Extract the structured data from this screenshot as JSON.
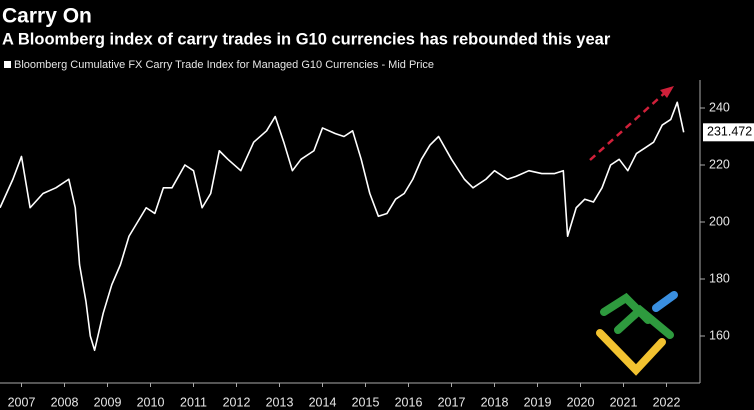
{
  "chart_data": {
    "type": "line",
    "title": "Carry On",
    "subtitle": "A Bloomberg index of carry trades in G10 currencies has rebounded this year",
    "x": [
      2007.0,
      2007.3,
      2007.5,
      2007.7,
      2008.0,
      2008.3,
      2008.6,
      2008.75,
      2008.85,
      2009.0,
      2009.1,
      2009.2,
      2009.4,
      2009.6,
      2009.8,
      2010.0,
      2010.2,
      2010.4,
      2010.6,
      2010.8,
      2011.0,
      2011.3,
      2011.5,
      2011.7,
      2011.9,
      2012.1,
      2012.3,
      2012.6,
      2012.9,
      2013.2,
      2013.4,
      2013.6,
      2013.8,
      2014.0,
      2014.3,
      2014.5,
      2014.8,
      2015.0,
      2015.2,
      2015.4,
      2015.6,
      2015.8,
      2016.0,
      2016.2,
      2016.4,
      2016.6,
      2016.8,
      2017.0,
      2017.2,
      2017.5,
      2017.8,
      2018.0,
      2018.3,
      2018.5,
      2018.8,
      2019.0,
      2019.3,
      2019.6,
      2019.9,
      2020.1,
      2020.2,
      2020.4,
      2020.6,
      2020.8,
      2021.0,
      2021.2,
      2021.4,
      2021.6,
      2021.8,
      2022.0,
      2022.2,
      2022.4,
      2022.6,
      2022.75,
      2022.9
    ],
    "series": [
      {
        "name": "Bloomberg Cumulative FX Carry Trade Index for Managed G10 Currencies - Mid Price",
        "color": "#ffffff",
        "values": [
          205,
          215,
          223,
          205,
          210,
          212,
          215,
          205,
          185,
          172,
          160,
          155,
          168,
          178,
          185,
          195,
          200,
          205,
          203,
          212,
          212,
          220,
          218,
          205,
          210,
          225,
          222,
          218,
          228,
          232,
          237,
          228,
          218,
          222,
          225,
          233,
          231,
          230,
          232,
          222,
          210,
          202,
          203,
          208,
          210,
          215,
          222,
          227,
          230,
          222,
          215,
          212,
          215,
          218,
          215,
          216,
          218,
          217,
          217,
          218,
          195,
          205,
          208,
          207,
          212,
          220,
          222,
          218,
          224,
          226,
          228,
          234,
          236,
          242,
          231.472
        ]
      }
    ],
    "xlim": [
      2007,
      2023
    ],
    "xticks": [
      {
        "value": 2007.5,
        "label": "2007"
      },
      {
        "value": 2008.5,
        "label": "2008"
      },
      {
        "value": 2009.5,
        "label": "2009"
      },
      {
        "value": 2010.5,
        "label": "2010"
      },
      {
        "value": 2011.5,
        "label": "2011"
      },
      {
        "value": 2012.5,
        "label": "2012"
      },
      {
        "value": 2013.5,
        "label": "2013"
      },
      {
        "value": 2014.5,
        "label": "2014"
      },
      {
        "value": 2015.5,
        "label": "2015"
      },
      {
        "value": 2016.5,
        "label": "2016"
      },
      {
        "value": 2017.5,
        "label": "2017"
      },
      {
        "value": 2018.5,
        "label": "2018"
      },
      {
        "value": 2019.5,
        "label": "2019"
      },
      {
        "value": 2020.5,
        "label": "2020"
      },
      {
        "value": 2021.5,
        "label": "2021"
      },
      {
        "value": 2022.5,
        "label": "2022"
      }
    ],
    "ylim": [
      145,
      250
    ],
    "yticks": [
      160,
      180,
      200,
      220,
      240
    ],
    "grid": false
  }
}
